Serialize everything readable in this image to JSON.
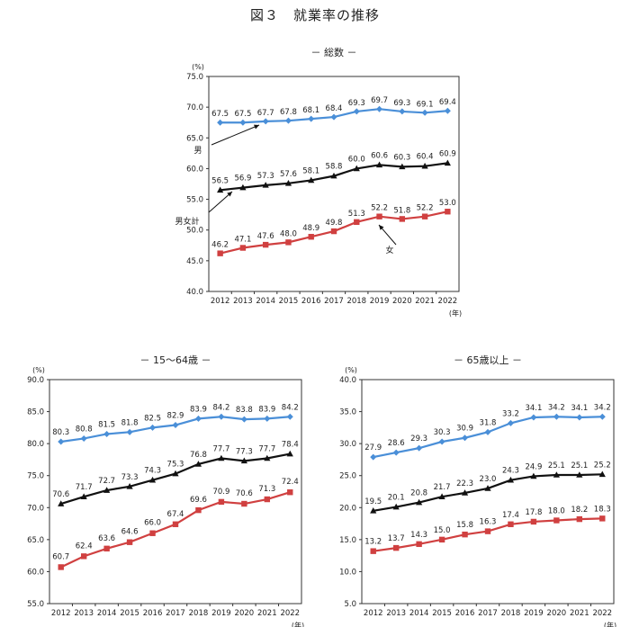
{
  "figure_title": "図３　就業率の推移",
  "chart_data": [
    {
      "type": "line",
      "title": "－ 総数 －",
      "ylabel": "(%)",
      "xlabel": "(年)",
      "ylim": [
        40.0,
        75.0
      ],
      "yticks": [
        "40.0",
        "45.0",
        "50.0",
        "55.0",
        "60.0",
        "65.0",
        "70.0",
        "75.0"
      ],
      "x": [
        "2012",
        "2013",
        "2014",
        "2015",
        "2016",
        "2017",
        "2018",
        "2019",
        "2020",
        "2021",
        "2022"
      ],
      "grid": false,
      "series": [
        {
          "name": "男",
          "color": "#4a8fd8",
          "marker": "diamond",
          "values": [
            67.5,
            67.5,
            67.7,
            67.8,
            68.1,
            68.4,
            69.3,
            69.7,
            69.3,
            69.1,
            69.4
          ],
          "labels": [
            "67.5",
            "67.5",
            "67.7",
            "67.8",
            "68.1",
            "68.4",
            "69.3",
            "69.7",
            "69.3",
            "69.1",
            "69.4"
          ]
        },
        {
          "name": "男女計",
          "color": "#111111",
          "marker": "triangle",
          "values": [
            56.5,
            56.9,
            57.3,
            57.6,
            58.1,
            58.8,
            60.0,
            60.6,
            60.3,
            60.4,
            60.9
          ],
          "labels": [
            "56.5",
            "56.9",
            "57.3",
            "57.6",
            "58.1",
            "58.8",
            "60.0",
            "60.6",
            "60.3",
            "60.4",
            "60.9"
          ]
        },
        {
          "name": "女",
          "color": "#d04040",
          "marker": "square",
          "values": [
            46.2,
            47.1,
            47.6,
            48.0,
            48.9,
            49.8,
            51.3,
            52.2,
            51.8,
            52.2,
            53.0
          ],
          "labels": [
            "46.2",
            "47.1",
            "47.6",
            "48.0",
            "48.9",
            "49.8",
            "51.3",
            "52.2",
            "51.8",
            "52.2",
            "53.0"
          ]
        }
      ]
    },
    {
      "type": "line",
      "title": "－ 15～64歳 －",
      "ylabel": "(%)",
      "xlabel": "(年)",
      "ylim": [
        55.0,
        90.0
      ],
      "yticks": [
        "55.0",
        "60.0",
        "65.0",
        "70.0",
        "75.0",
        "80.0",
        "85.0",
        "90.0"
      ],
      "x": [
        "2012",
        "2013",
        "2014",
        "2015",
        "2016",
        "2017",
        "2018",
        "2019",
        "2020",
        "2021",
        "2022"
      ],
      "grid": false,
      "series": [
        {
          "color": "#4a8fd8",
          "marker": "diamond",
          "values": [
            80.3,
            80.8,
            81.5,
            81.8,
            82.5,
            82.9,
            83.9,
            84.2,
            83.8,
            83.9,
            84.2
          ],
          "labels": [
            "80.3",
            "80.8",
            "81.5",
            "81.8",
            "82.5",
            "82.9",
            "83.9",
            "84.2",
            "83.8",
            "83.9",
            "84.2"
          ]
        },
        {
          "color": "#111111",
          "marker": "triangle",
          "values": [
            70.6,
            71.7,
            72.7,
            73.3,
            74.3,
            75.3,
            76.8,
            77.7,
            77.3,
            77.7,
            78.4
          ],
          "labels": [
            "70.6",
            "71.7",
            "72.7",
            "73.3",
            "74.3",
            "75.3",
            "76.8",
            "77.7",
            "77.3",
            "77.7",
            "78.4"
          ]
        },
        {
          "color": "#d04040",
          "marker": "square",
          "values": [
            60.7,
            62.4,
            63.6,
            64.6,
            66.0,
            67.4,
            69.6,
            70.9,
            70.6,
            71.3,
            72.4
          ],
          "labels": [
            "60.7",
            "62.4",
            "63.6",
            "64.6",
            "66.0",
            "67.4",
            "69.6",
            "70.9",
            "70.6",
            "71.3",
            "72.4"
          ]
        }
      ]
    },
    {
      "type": "line",
      "title": "－ 65歳以上 －",
      "ylabel": "(%)",
      "xlabel": "(年)",
      "ylim": [
        5.0,
        40.0
      ],
      "yticks": [
        "5.0",
        "10.0",
        "15.0",
        "20.0",
        "25.0",
        "30.0",
        "35.0",
        "40.0"
      ],
      "x": [
        "2012",
        "2013",
        "2014",
        "2015",
        "2016",
        "2017",
        "2018",
        "2019",
        "2020",
        "2021",
        "2022"
      ],
      "grid": false,
      "series": [
        {
          "color": "#4a8fd8",
          "marker": "diamond",
          "values": [
            27.9,
            28.6,
            29.3,
            30.3,
            30.9,
            31.8,
            33.2,
            34.1,
            34.2,
            34.1,
            34.2
          ],
          "labels": [
            "27.9",
            "28.6",
            "29.3",
            "30.3",
            "30.9",
            "31.8",
            "33.2",
            "34.1",
            "34.2",
            "34.1",
            "34.2"
          ]
        },
        {
          "color": "#111111",
          "marker": "triangle",
          "values": [
            19.5,
            20.1,
            20.8,
            21.7,
            22.3,
            23.0,
            24.3,
            24.9,
            25.1,
            25.1,
            25.2
          ],
          "labels": [
            "19.5",
            "20.1",
            "20.8",
            "21.7",
            "22.3",
            "23.0",
            "24.3",
            "24.9",
            "25.1",
            "25.1",
            "25.2"
          ]
        },
        {
          "color": "#d04040",
          "marker": "square",
          "values": [
            13.2,
            13.7,
            14.3,
            15.0,
            15.8,
            16.3,
            17.4,
            17.8,
            18.0,
            18.2,
            18.3
          ],
          "labels": [
            "13.2",
            "13.7",
            "14.3",
            "15.0",
            "15.8",
            "16.3",
            "17.4",
            "17.8",
            "18.0",
            "18.2",
            "18.3"
          ]
        }
      ]
    }
  ]
}
